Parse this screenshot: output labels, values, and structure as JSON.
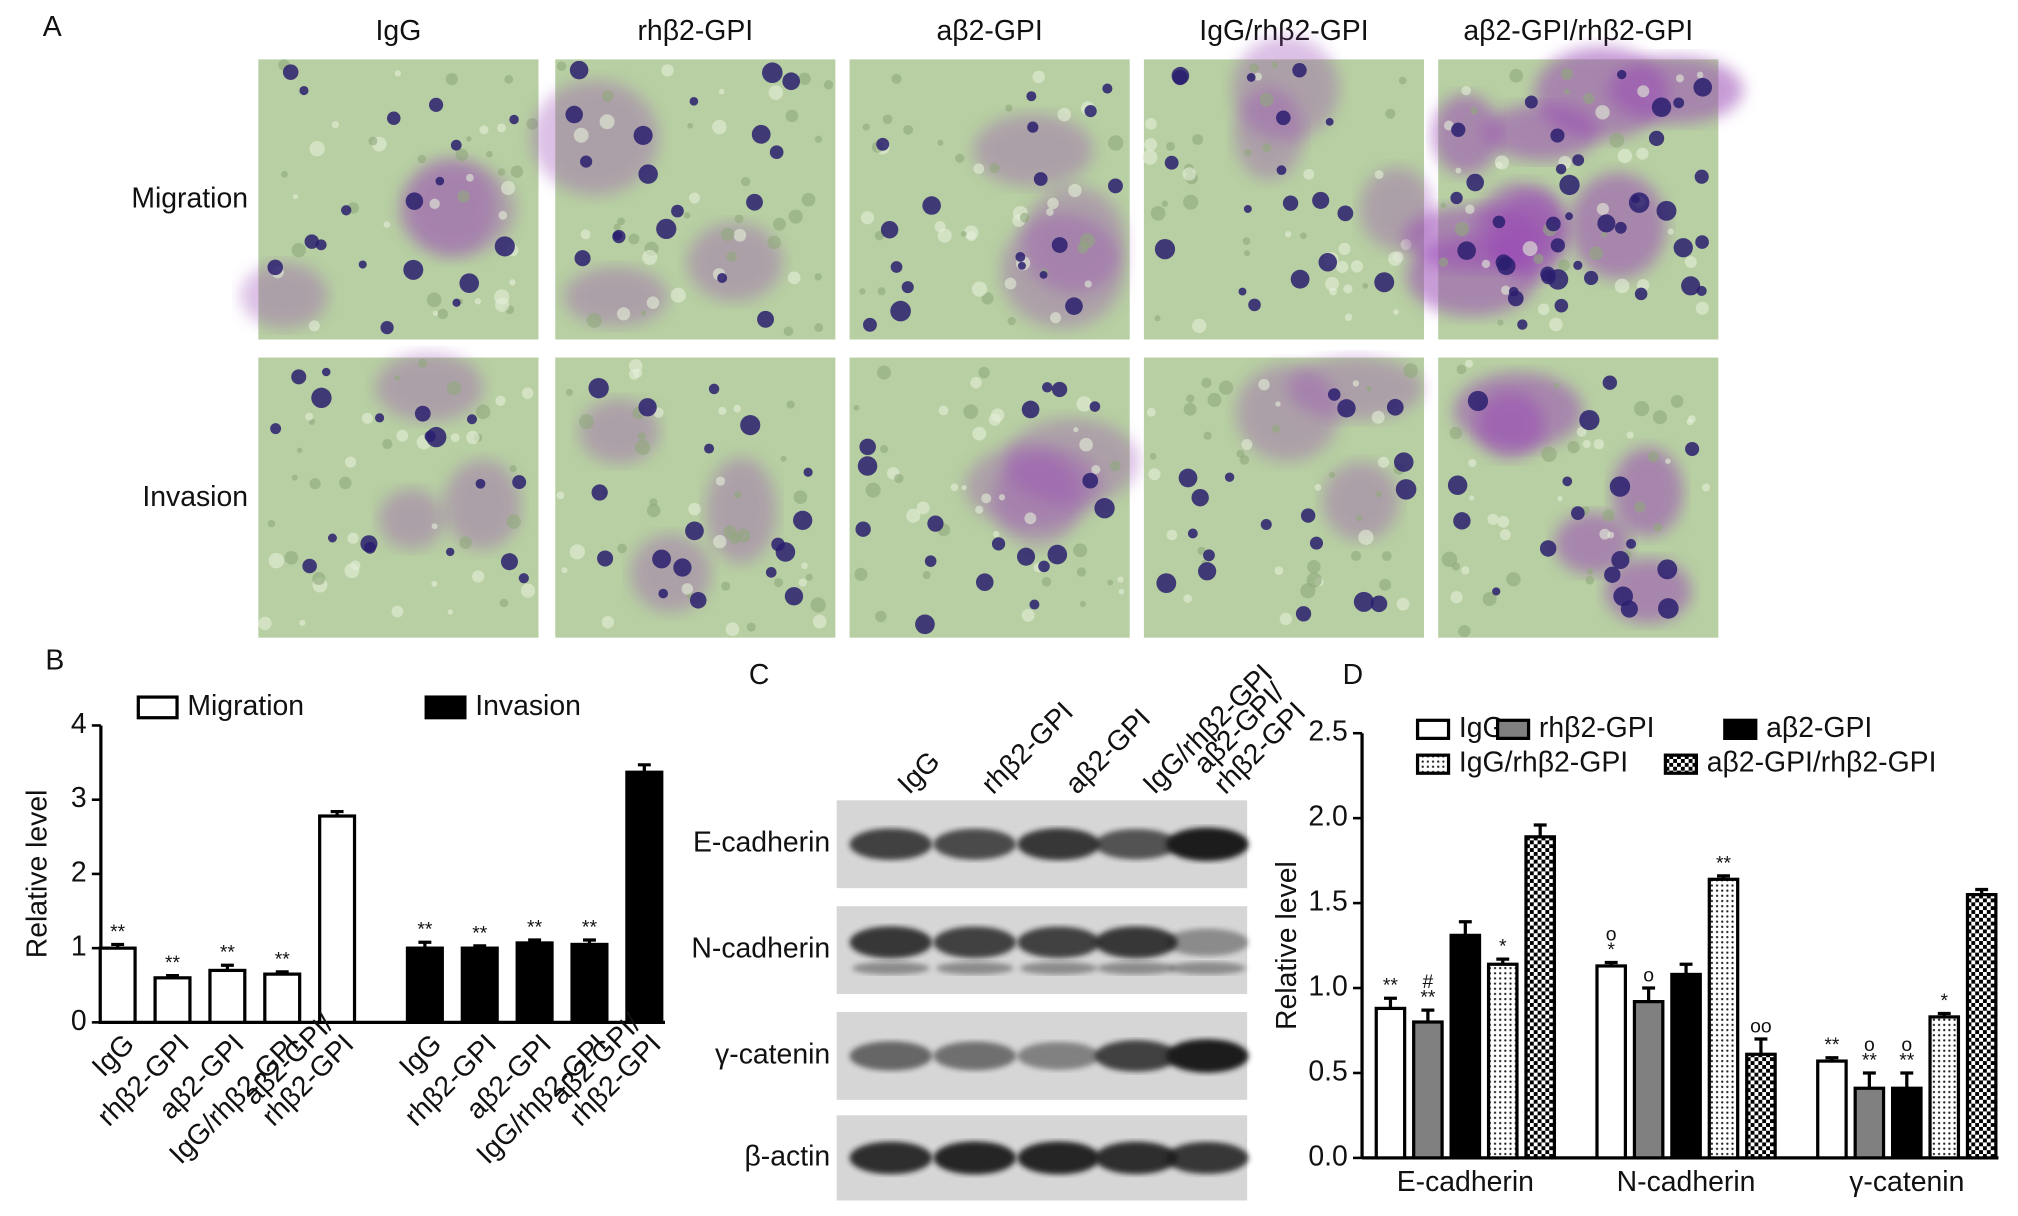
{
  "panel_labels": [
    "A",
    "B",
    "C",
    "D"
  ],
  "panel_a": {
    "columns": [
      "IgG",
      "rhβ2-GPI",
      "aβ2-GPI",
      "IgG/rhβ2-GPI",
      "aβ2-GPI/rhβ2-GPI"
    ],
    "rows": [
      "Migration",
      "Invasion"
    ]
  },
  "panel_c": {
    "lanes": [
      "IgG",
      "rhβ2-GPI",
      "aβ2-GPI",
      "IgG/rhβ2-GPI",
      [
        "aβ2-GPI/",
        "rhβ2-GPI"
      ]
    ],
    "proteins": [
      "E-cadherin",
      "N-cadherin",
      "γ-catenin",
      "β-actin"
    ]
  },
  "chart_data": [
    {
      "type": "bar",
      "group_by": "series",
      "y_label": "Relative level",
      "categories": [
        "IgG",
        "rhβ2-GPI",
        "aβ2-GPI",
        "IgG/rhβ2-GPI",
        [
          "aβ2-GPI/",
          "rhβ2-GPI"
        ]
      ],
      "ylim": [
        0,
        4
      ],
      "yticks": [
        0,
        1,
        2,
        3,
        4
      ],
      "series": [
        {
          "name": "Migration",
          "color": "#ffffff",
          "values": [
            1.0,
            0.6,
            0.7,
            0.65,
            2.78
          ],
          "errors": [
            0.05,
            0.03,
            0.07,
            0.03,
            0.06
          ],
          "annotations": [
            [
              "**"
            ],
            [
              "**"
            ],
            [
              "**"
            ],
            [
              "**"
            ],
            null
          ]
        },
        {
          "name": "Invasion",
          "color": "#000000",
          "values": [
            1.0,
            1.0,
            1.07,
            1.05,
            3.37
          ],
          "errors": [
            0.08,
            0.03,
            0.04,
            0.06,
            0.1
          ],
          "annotations": [
            [
              "**"
            ],
            [
              "**"
            ],
            [
              "**"
            ],
            [
              "**"
            ],
            null
          ]
        }
      ]
    },
    {
      "type": "bar",
      "group_by": "category",
      "y_label": "Relative level",
      "categories": [
        "E-cadherin",
        "N-cadherin",
        "γ-catenin"
      ],
      "ylim": [
        0,
        2.5
      ],
      "yticks": [
        {
          "value": 0,
          "label": "0.0"
        },
        0.5,
        {
          "value": 1,
          "label": "1.0"
        },
        1.5,
        {
          "value": 2,
          "label": "2.0"
        },
        2.5
      ],
      "series": [
        {
          "name": "IgG",
          "color": "#ffffff",
          "values": [
            0.88,
            1.13,
            0.57
          ],
          "errors": [
            0.06,
            0.02,
            0.02
          ],
          "annotations": [
            [
              "**"
            ],
            [
              "o",
              "*"
            ],
            [
              "**"
            ]
          ]
        },
        {
          "name": "rhβ2-GPI",
          "color": "#808080",
          "values": [
            0.8,
            0.92,
            0.41
          ],
          "errors": [
            0.07,
            0.08,
            0.09
          ],
          "annotations": [
            [
              "#",
              "**"
            ],
            [
              "o"
            ],
            [
              "o",
              "**"
            ]
          ]
        },
        {
          "name": "aβ2-GPI",
          "color": "#000000",
          "values": [
            1.31,
            1.08,
            0.41
          ],
          "errors": [
            0.08,
            0.06,
            0.09
          ],
          "annotations": [
            null,
            null,
            [
              "o",
              "**"
            ]
          ]
        },
        {
          "name": "IgG/rhβ2-GPI",
          "color": "#ffffff",
          "pattern": "dots",
          "values": [
            1.14,
            1.64,
            0.83
          ],
          "errors": [
            0.03,
            0.02,
            0.02
          ],
          "annotations": [
            [
              "*"
            ],
            [
              "**"
            ],
            [
              "*"
            ]
          ]
        },
        {
          "name": "aβ2-GPI/rhβ2-GPI",
          "color": "#000000",
          "pattern": "checker",
          "values": [
            1.89,
            0.61,
            1.55
          ],
          "errors": [
            0.07,
            0.09,
            0.03
          ],
          "annotations": [
            null,
            [
              "oo"
            ],
            null
          ]
        }
      ]
    }
  ]
}
